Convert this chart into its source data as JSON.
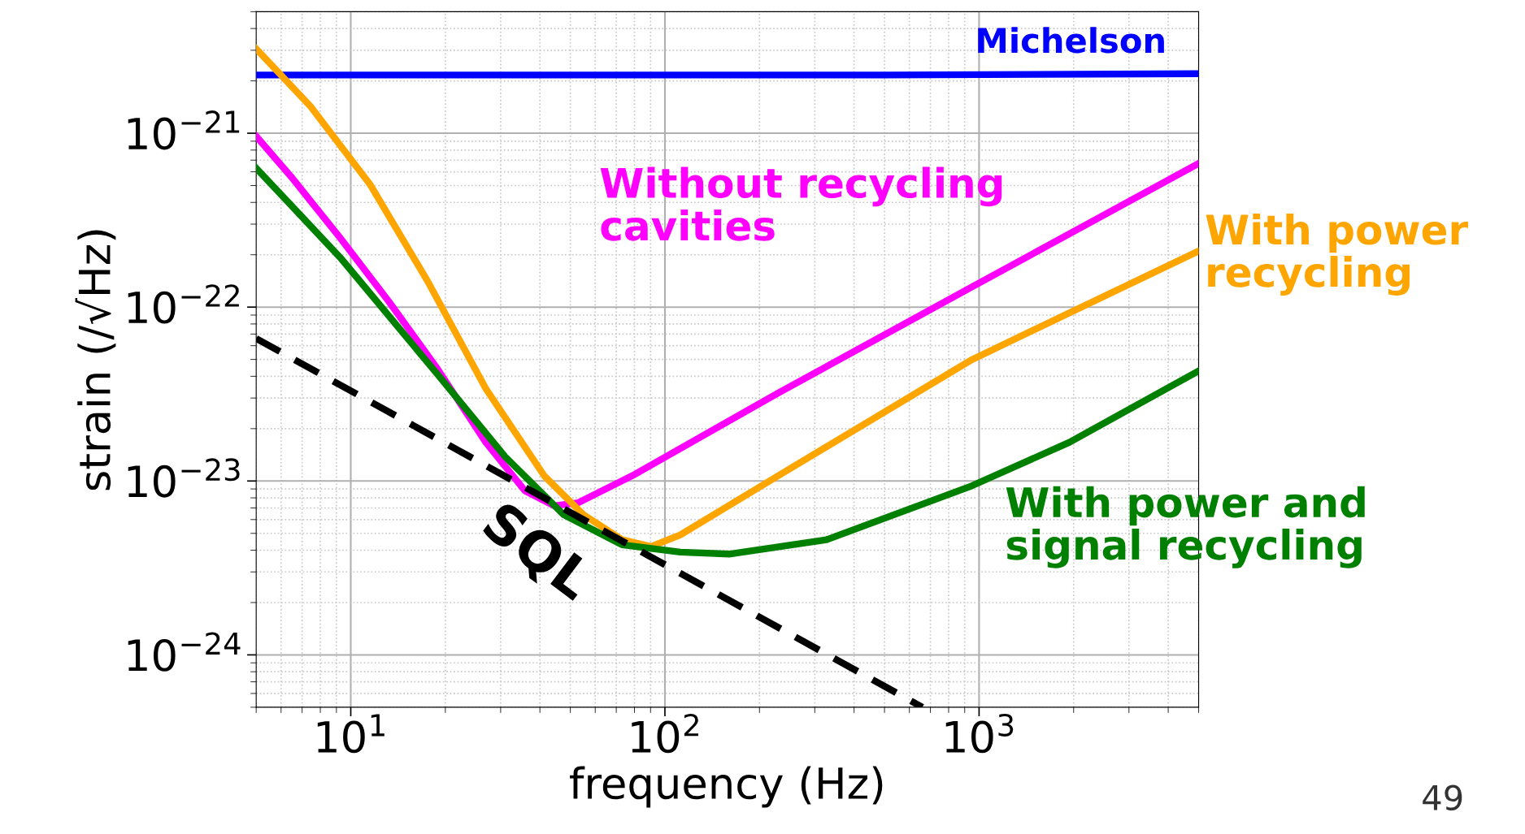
{
  "chart_data": {
    "type": "line",
    "xlabel": "frequency (Hz)",
    "ylabel": "strain (/√Hz)",
    "log": "xy",
    "grid": true,
    "line_style": "solid",
    "marker": "none",
    "xlim": [
      5,
      5000
    ],
    "xticks": [
      {
        "value": 10,
        "label": "10$^{1}$"
      },
      {
        "value": 100,
        "label": "10$^{2}$"
      },
      {
        "value": 1000,
        "label": "10$^{3}$"
      }
    ],
    "ylim": [
      5e-25,
      5e-21
    ],
    "yticks": [
      {
        "value": 1e-24,
        "label": "10$^{−24}$"
      },
      {
        "value": 1e-23,
        "label": "10$^{−23}$"
      },
      {
        "value": 1e-22,
        "label": "10$^{−22}$"
      },
      {
        "value": 1e-21,
        "label": "10$^{−21}$"
      }
    ],
    "series": [
      {
        "name": "Michelson",
        "color": "#0000ff",
        "x": [
          5,
          500,
          5000
        ],
        "values": [
          2.16e-21,
          2.16e-21,
          2.2e-21
        ]
      },
      {
        "name": "Without recycling\ncavities",
        "color": "#ff00ff",
        "x": [
          5,
          6.47,
          9.25,
          13.2,
          18.9,
          26.9,
          35.8,
          44.4,
          53,
          78.5,
          229,
          951,
          5000
        ],
        "values": [
          9.6e-22,
          5.6e-22,
          2.5e-22,
          1.08e-22,
          4.4e-23,
          1.67e-23,
          8.8e-24,
          7.2e-24,
          7.5e-24,
          1.07e-23,
          3.2e-23,
          1.31e-22,
          6.7e-22
        ]
      },
      {
        "name": "With power\nrecycling",
        "color": "#ffa500",
        "x": [
          5,
          7.46,
          11.5,
          17.6,
          26.9,
          41.3,
          55,
          73,
          90.6,
          112,
          229,
          951,
          5000
        ],
        "values": [
          3.06e-21,
          1.42e-21,
          5.1e-22,
          1.4e-22,
          3.4e-23,
          1.07e-23,
          6.4e-24,
          4.6e-24,
          4.2e-24,
          4.9e-24,
          1.07e-23,
          5e-23,
          2.1e-22
        ]
      },
      {
        "name": "With power and\nsignal recycling",
        "color": "#008000",
        "x": [
          5,
          9.25,
          18.9,
          31,
          47.6,
          73,
          112,
          160,
          327,
          951,
          1940,
          5000
        ],
        "values": [
          6.3e-22,
          1.93e-22,
          4.1e-23,
          1.38e-23,
          6.4e-24,
          4.3e-24,
          3.9e-24,
          3.8e-24,
          4.6e-24,
          9.4e-24,
          1.67e-23,
          4.3e-23
        ]
      },
      {
        "name": "SQL",
        "color": "#000000",
        "line_style": "dashed",
        "x": [
          5,
          660
        ],
        "values": [
          6.6e-23,
          5e-25
        ]
      }
    ],
    "annotations": [
      "49"
    ]
  }
}
